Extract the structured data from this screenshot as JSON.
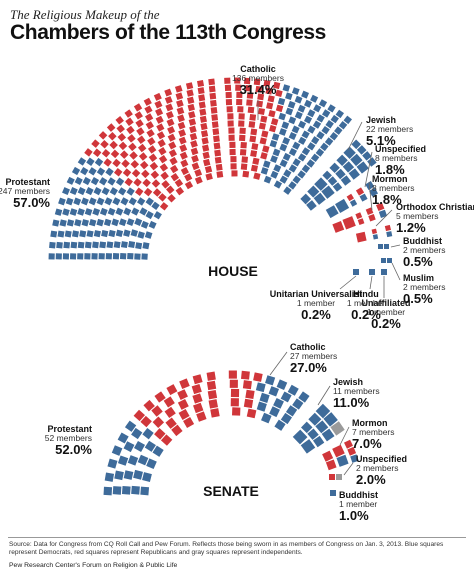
{
  "header": {
    "subtitle": "The Religious Makeup of the",
    "title": "Chambers of the 113th Congress"
  },
  "colors": {
    "democrat": "#3e6b9a",
    "republican": "#d0363a",
    "independent": "#9a9a9a"
  },
  "chart_data": [
    {
      "type": "parliament",
      "chamber": "HOUSE",
      "groups": [
        {
          "name": "Protestant",
          "members_label": "247 members",
          "members": 247,
          "percent_label": "57.0%",
          "percent": 57.0,
          "democrats": 107,
          "republicans": 140
        },
        {
          "name": "Catholic",
          "members_label": "136 members",
          "members": 136,
          "percent_label": "31.4%",
          "percent": 31.4,
          "democrats": 73,
          "republicans": 63
        },
        {
          "name": "Jewish",
          "members_label": "22 members",
          "members": 22,
          "percent_label": "5.1%",
          "percent": 5.1,
          "democrats": 22,
          "republicans": 0
        },
        {
          "name": "Unspecified",
          "members_label": "8 members",
          "members": 8,
          "percent_label": "1.8%",
          "percent": 1.8,
          "democrats": 6,
          "republicans": 2
        },
        {
          "name": "Mormon",
          "members_label": "8 members",
          "members": 8,
          "percent_label": "1.8%",
          "percent": 1.8,
          "democrats": 1,
          "republicans": 7
        },
        {
          "name": "Orthodox Christian",
          "members_label": "5 members",
          "members": 5,
          "percent_label": "1.2%",
          "percent": 1.2,
          "democrats": 2,
          "republicans": 3
        },
        {
          "name": "Buddhist",
          "members_label": "2 members",
          "members": 2,
          "percent_label": "0.5%",
          "percent": 0.5,
          "democrats": 2,
          "republicans": 0
        },
        {
          "name": "Muslim",
          "members_label": "2 members",
          "members": 2,
          "percent_label": "0.5%",
          "percent": 0.5,
          "democrats": 2,
          "republicans": 0
        },
        {
          "name": "Unaffiliated",
          "members_label": "1 member",
          "members": 1,
          "percent_label": "0.2%",
          "percent": 0.2,
          "democrats": 1,
          "republicans": 0
        },
        {
          "name": "Hindu",
          "members_label": "1 member",
          "members": 1,
          "percent_label": "0.2%",
          "percent": 0.2,
          "democrats": 1,
          "republicans": 0
        },
        {
          "name": "Unitarian Universalist",
          "members_label": "1 member",
          "members": 1,
          "percent_label": "0.2%",
          "percent": 0.2,
          "democrats": 1,
          "republicans": 0
        }
      ]
    },
    {
      "type": "parliament",
      "chamber": "SENATE",
      "groups": [
        {
          "name": "Protestant",
          "members_label": "52 members",
          "members": 52,
          "percent_label": "52.0%",
          "percent": 52.0,
          "democrats": 24,
          "republicans": 28
        },
        {
          "name": "Catholic",
          "members_label": "27 members",
          "members": 27,
          "percent_label": "27.0%",
          "percent": 27.0,
          "democrats": 16,
          "republicans": 11
        },
        {
          "name": "Jewish",
          "members_label": "11 members",
          "members": 11,
          "percent_label": "11.0%",
          "percent": 11.0,
          "democrats": 10,
          "republicans": 0,
          "independents": 1
        },
        {
          "name": "Mormon",
          "members_label": "7 members",
          "members": 7,
          "percent_label": "7.0%",
          "percent": 7.0,
          "democrats": 2,
          "republicans": 5
        },
        {
          "name": "Unspecified",
          "members_label": "2 members",
          "members": 2,
          "percent_label": "2.0%",
          "percent": 2.0,
          "democrats": 0,
          "republicans": 1,
          "independents": 1
        },
        {
          "name": "Buddhist",
          "members_label": "1 member",
          "members": 1,
          "percent_label": "1.0%",
          "percent": 1.0,
          "democrats": 1,
          "republicans": 0
        }
      ]
    }
  ],
  "footer": {
    "source": "Source: Data for Congress from CQ Roll Call and Pew Forum. Reflects those being sworn in as members of Congress on Jan. 3, 2013. Blue squares represent Democrats, red squares represent Republicans and gray squares represent independents.",
    "credit": "Pew Research Center's Forum on Religion & Public Life"
  }
}
